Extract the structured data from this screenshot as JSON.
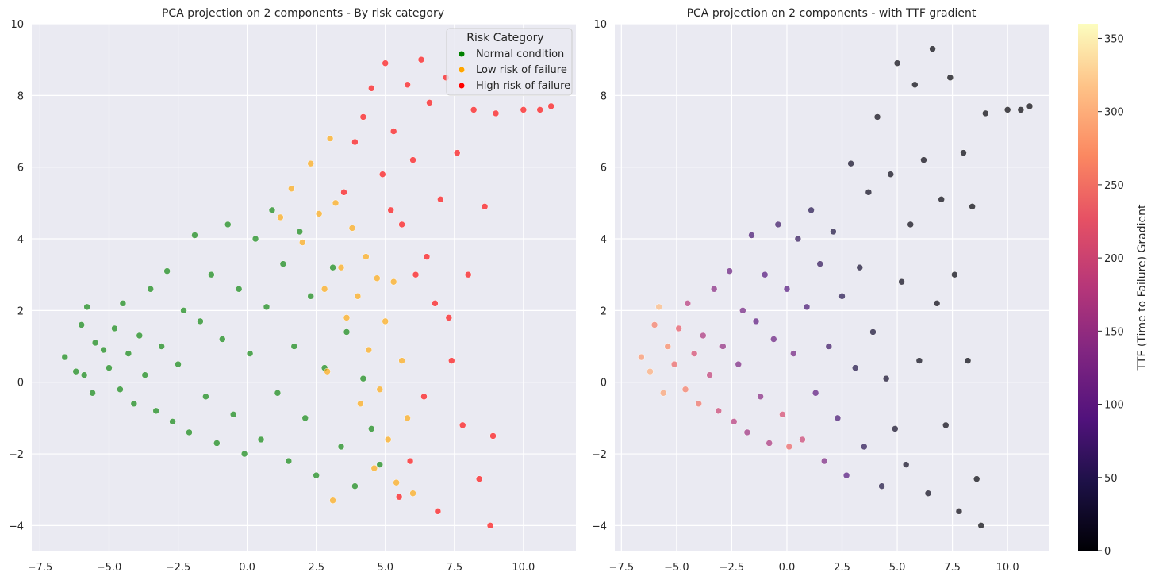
{
  "chart_data": [
    {
      "type": "scatter",
      "title": "PCA projection on 2 components - By risk category",
      "xlabel": "",
      "ylabel": "",
      "xlim": [
        -7.8,
        11.9
      ],
      "ylim": [
        -4.7,
        10.0
      ],
      "xticks": [
        -7.5,
        -5.0,
        -2.5,
        0.0,
        2.5,
        5.0,
        7.5,
        10.0
      ],
      "xtick_labels": [
        "−7.5",
        "−5.0",
        "−2.5",
        "0.0",
        "2.5",
        "5.0",
        "7.5",
        "10.0"
      ],
      "yticks": [
        -4,
        -2,
        0,
        2,
        4,
        6,
        8,
        10
      ],
      "ytick_labels": [
        "−4",
        "−2",
        "0",
        "2",
        "4",
        "6",
        "8",
        "10"
      ],
      "grid": true,
      "legend": {
        "title": "Risk Category",
        "placement": "top-right",
        "entries": [
          "Normal condition",
          "Low risk of failure",
          "High risk of failure"
        ]
      },
      "series": [
        {
          "name": "Normal condition",
          "color": "#008000",
          "points": [
            [
              -6.6,
              0.7
            ],
            [
              -6.2,
              0.3
            ],
            [
              -6.0,
              1.6
            ],
            [
              -5.9,
              0.2
            ],
            [
              -5.8,
              2.1
            ],
            [
              -5.6,
              -0.3
            ],
            [
              -5.5,
              1.1
            ],
            [
              -5.2,
              0.9
            ],
            [
              -5.0,
              0.4
            ],
            [
              -4.8,
              1.5
            ],
            [
              -4.6,
              -0.2
            ],
            [
              -4.5,
              2.2
            ],
            [
              -4.3,
              0.8
            ],
            [
              -4.1,
              -0.6
            ],
            [
              -3.9,
              1.3
            ],
            [
              -3.7,
              0.2
            ],
            [
              -3.5,
              2.6
            ],
            [
              -3.3,
              -0.8
            ],
            [
              -3.1,
              1.0
            ],
            [
              -2.9,
              3.1
            ],
            [
              -2.7,
              -1.1
            ],
            [
              -2.5,
              0.5
            ],
            [
              -2.3,
              2.0
            ],
            [
              -2.1,
              -1.4
            ],
            [
              -1.9,
              4.1
            ],
            [
              -1.7,
              1.7
            ],
            [
              -1.5,
              -0.4
            ],
            [
              -1.3,
              3.0
            ],
            [
              -1.1,
              -1.7
            ],
            [
              -0.9,
              1.2
            ],
            [
              -0.7,
              4.4
            ],
            [
              -0.5,
              -0.9
            ],
            [
              -0.3,
              2.6
            ],
            [
              -0.1,
              -2.0
            ],
            [
              0.1,
              0.8
            ],
            [
              0.3,
              4.0
            ],
            [
              0.5,
              -1.6
            ],
            [
              0.7,
              2.1
            ],
            [
              0.9,
              4.8
            ],
            [
              1.1,
              -0.3
            ],
            [
              1.3,
              3.3
            ],
            [
              1.5,
              -2.2
            ],
            [
              1.7,
              1.0
            ],
            [
              1.9,
              4.2
            ],
            [
              2.1,
              -1.0
            ],
            [
              2.3,
              2.4
            ],
            [
              2.5,
              -2.6
            ],
            [
              2.8,
              0.4
            ],
            [
              3.1,
              3.2
            ],
            [
              3.4,
              -1.8
            ],
            [
              3.6,
              1.4
            ],
            [
              3.9,
              -2.9
            ],
            [
              4.2,
              0.1
            ],
            [
              4.5,
              -1.3
            ],
            [
              4.8,
              -2.3
            ]
          ]
        },
        {
          "name": "Low risk of failure",
          "color": "#FFA500",
          "points": [
            [
              1.2,
              4.6
            ],
            [
              1.6,
              5.4
            ],
            [
              2.0,
              3.9
            ],
            [
              2.3,
              6.1
            ],
            [
              2.6,
              4.7
            ],
            [
              2.8,
              2.6
            ],
            [
              3.0,
              6.8
            ],
            [
              3.2,
              5.0
            ],
            [
              3.4,
              3.2
            ],
            [
              3.6,
              1.8
            ],
            [
              3.8,
              4.3
            ],
            [
              4.0,
              2.4
            ],
            [
              4.1,
              -0.6
            ],
            [
              4.3,
              3.5
            ],
            [
              4.4,
              0.9
            ],
            [
              4.6,
              -2.4
            ],
            [
              4.7,
              2.9
            ],
            [
              4.8,
              -0.2
            ],
            [
              5.0,
              1.7
            ],
            [
              5.1,
              -1.6
            ],
            [
              5.3,
              2.8
            ],
            [
              5.4,
              -2.8
            ],
            [
              5.6,
              0.6
            ],
            [
              5.8,
              -1.0
            ],
            [
              6.0,
              -3.1
            ],
            [
              3.1,
              -3.3
            ],
            [
              2.9,
              0.3
            ]
          ]
        },
        {
          "name": "High risk of failure",
          "color": "#FF0000",
          "points": [
            [
              3.5,
              5.3
            ],
            [
              3.9,
              6.7
            ],
            [
              4.2,
              7.4
            ],
            [
              4.5,
              8.2
            ],
            [
              4.9,
              5.8
            ],
            [
              5.0,
              8.9
            ],
            [
              5.3,
              7.0
            ],
            [
              5.6,
              4.4
            ],
            [
              5.8,
              8.3
            ],
            [
              6.0,
              6.2
            ],
            [
              6.3,
              9.0
            ],
            [
              6.5,
              3.5
            ],
            [
              6.6,
              7.8
            ],
            [
              6.8,
              2.2
            ],
            [
              7.0,
              5.1
            ],
            [
              7.2,
              8.5
            ],
            [
              7.4,
              0.6
            ],
            [
              7.6,
              6.4
            ],
            [
              7.8,
              -1.2
            ],
            [
              8.0,
              3.0
            ],
            [
              8.2,
              7.6
            ],
            [
              8.4,
              -2.7
            ],
            [
              8.6,
              4.9
            ],
            [
              8.8,
              -4.0
            ],
            [
              9.0,
              7.5
            ],
            [
              10.0,
              7.6
            ],
            [
              10.6,
              7.6
            ],
            [
              11.0,
              7.7
            ],
            [
              5.9,
              -2.2
            ],
            [
              6.4,
              -0.4
            ],
            [
              6.9,
              -3.6
            ],
            [
              7.3,
              1.8
            ],
            [
              5.5,
              -3.2
            ],
            [
              8.9,
              -1.5
            ],
            [
              6.1,
              3.0
            ],
            [
              5.2,
              4.8
            ]
          ]
        }
      ]
    },
    {
      "type": "scatter",
      "title": "PCA projection on 2 components - with TTF gradient",
      "xlabel": "",
      "ylabel": "",
      "xlim": [
        -7.8,
        11.9
      ],
      "ylim": [
        -4.7,
        10.0
      ],
      "xticks": [
        -7.5,
        -5.0,
        -2.5,
        0.0,
        2.5,
        5.0,
        7.5,
        10.0
      ],
      "xtick_labels": [
        "−7.5",
        "−5.0",
        "−2.5",
        "0.0",
        "2.5",
        "5.0",
        "7.5",
        "10.0"
      ],
      "yticks": [
        -4,
        -2,
        0,
        2,
        4,
        6,
        8,
        10
      ],
      "ytick_labels": [
        "−4",
        "−2",
        "0",
        "2",
        "4",
        "6",
        "8",
        "10"
      ],
      "grid": true,
      "colorbar": {
        "label": "TTF (Time to Failure) Gradient",
        "min": 0,
        "max": 360,
        "ticks": [
          0,
          50,
          100,
          150,
          200,
          250,
          300,
          350
        ],
        "tick_labels": [
          "0",
          "50",
          "100",
          "150",
          "200",
          "250",
          "300",
          "350"
        ],
        "colormap": "magma"
      },
      "points": [
        [
          -6.6,
          0.7,
          280
        ],
        [
          -6.2,
          0.3,
          300
        ],
        [
          -6.0,
          1.6,
          260
        ],
        [
          -5.8,
          2.1,
          310
        ],
        [
          -5.6,
          -0.3,
          290
        ],
        [
          -5.4,
          1.0,
          270
        ],
        [
          -5.1,
          0.5,
          240
        ],
        [
          -4.9,
          1.5,
          230
        ],
        [
          -4.6,
          -0.2,
          260
        ],
        [
          -4.5,
          2.2,
          180
        ],
        [
          -4.2,
          0.8,
          210
        ],
        [
          -4.0,
          -0.6,
          250
        ],
        [
          -3.8,
          1.3,
          170
        ],
        [
          -3.5,
          0.2,
          190
        ],
        [
          -3.3,
          2.6,
          140
        ],
        [
          -3.1,
          -0.8,
          200
        ],
        [
          -2.9,
          1.0,
          150
        ],
        [
          -2.6,
          3.1,
          110
        ],
        [
          -2.4,
          -1.1,
          180
        ],
        [
          -2.2,
          0.5,
          130
        ],
        [
          -2.0,
          2.0,
          120
        ],
        [
          -1.8,
          -1.4,
          160
        ],
        [
          -1.6,
          4.1,
          80
        ],
        [
          -1.4,
          1.7,
          100
        ],
        [
          -1.2,
          -0.4,
          140
        ],
        [
          -1.0,
          3.0,
          90
        ],
        [
          -0.8,
          -1.7,
          170
        ],
        [
          -0.6,
          1.2,
          110
        ],
        [
          -0.4,
          4.4,
          70
        ],
        [
          -0.2,
          -0.9,
          210
        ],
        [
          0.0,
          2.6,
          90
        ],
        [
          0.1,
          -1.8,
          240
        ],
        [
          0.3,
          0.8,
          120
        ],
        [
          0.5,
          4.0,
          60
        ],
        [
          0.7,
          -1.6,
          200
        ],
        [
          0.9,
          2.1,
          80
        ],
        [
          1.1,
          4.8,
          50
        ],
        [
          1.3,
          -0.3,
          100
        ],
        [
          1.5,
          3.3,
          60
        ],
        [
          1.7,
          -2.2,
          130
        ],
        [
          1.9,
          1.0,
          70
        ],
        [
          2.1,
          4.2,
          40
        ],
        [
          2.3,
          -1.0,
          80
        ],
        [
          2.5,
          2.4,
          50
        ],
        [
          2.7,
          -2.6,
          90
        ],
        [
          2.9,
          6.1,
          20
        ],
        [
          3.1,
          0.4,
          45
        ],
        [
          3.3,
          3.2,
          30
        ],
        [
          3.5,
          -1.8,
          55
        ],
        [
          3.7,
          5.3,
          15
        ],
        [
          3.9,
          1.4,
          30
        ],
        [
          4.1,
          7.4,
          8
        ],
        [
          4.3,
          -2.9,
          40
        ],
        [
          4.5,
          0.1,
          25
        ],
        [
          4.7,
          5.8,
          10
        ],
        [
          4.9,
          -1.3,
          22
        ],
        [
          5.0,
          8.9,
          5
        ],
        [
          5.2,
          2.8,
          12
        ],
        [
          5.4,
          -2.3,
          18
        ],
        [
          5.6,
          4.4,
          8
        ],
        [
          5.8,
          8.3,
          4
        ],
        [
          6.0,
          0.6,
          10
        ],
        [
          6.2,
          6.2,
          6
        ],
        [
          6.4,
          -3.1,
          14
        ],
        [
          6.6,
          9.3,
          3
        ],
        [
          6.8,
          2.2,
          6
        ],
        [
          7.0,
          5.1,
          5
        ],
        [
          7.2,
          -1.2,
          8
        ],
        [
          7.4,
          8.5,
          2
        ],
        [
          7.6,
          3.0,
          4
        ],
        [
          7.8,
          -3.6,
          6
        ],
        [
          8.0,
          6.4,
          3
        ],
        [
          8.2,
          0.6,
          4
        ],
        [
          8.4,
          4.9,
          2
        ],
        [
          8.6,
          -2.7,
          3
        ],
        [
          8.8,
          -4.0,
          2
        ],
        [
          9.0,
          7.5,
          1
        ],
        [
          10.0,
          7.6,
          1
        ],
        [
          10.6,
          7.6,
          1
        ],
        [
          11.0,
          7.7,
          1
        ]
      ]
    }
  ]
}
